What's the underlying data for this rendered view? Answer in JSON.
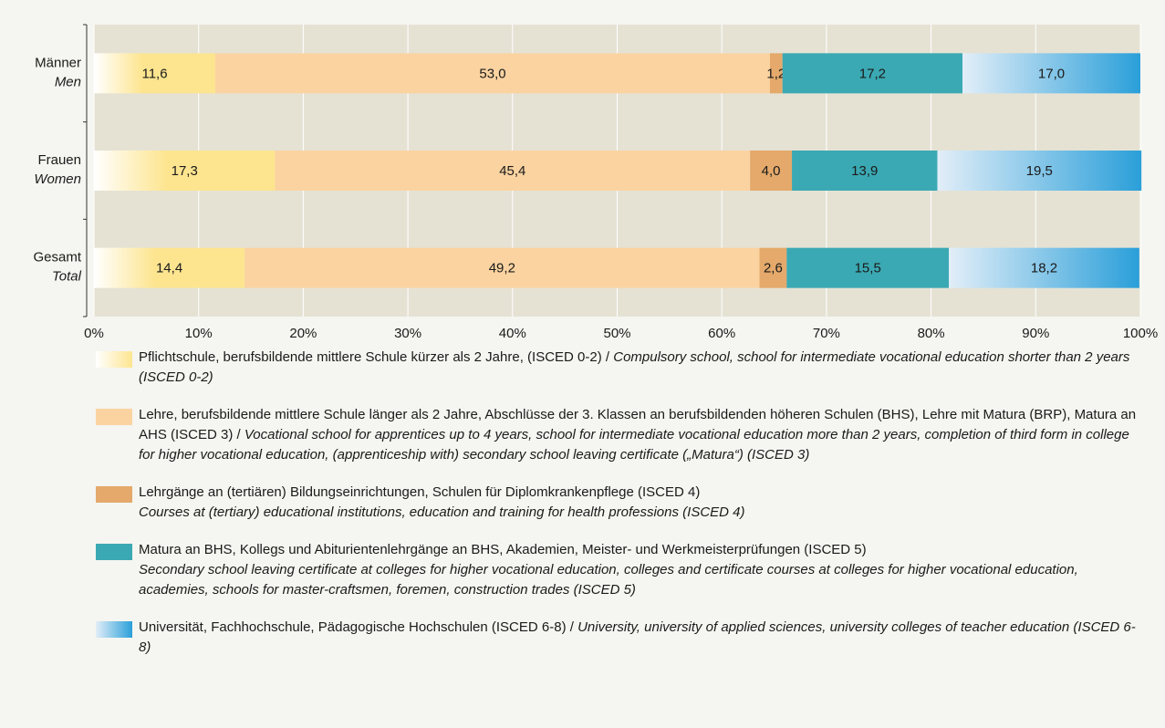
{
  "chart_data": {
    "type": "stacked-bar-horizontal",
    "categories": [
      "Männer",
      "Frauen",
      "Gesamt"
    ],
    "categories_en": [
      "Men",
      "Women",
      "Total"
    ],
    "xlim": [
      0,
      100
    ],
    "xticks": [
      {
        "value": 0,
        "label": "0%"
      },
      {
        "value": 10,
        "label": "10%"
      },
      {
        "value": 20,
        "label": "20%"
      },
      {
        "value": 30,
        "label": "30%"
      },
      {
        "value": 40,
        "label": "40%"
      },
      {
        "value": 50,
        "label": "50%"
      },
      {
        "value": 60,
        "label": "60%"
      },
      {
        "value": 70,
        "label": "70%"
      },
      {
        "value": 80,
        "label": "80%"
      },
      {
        "value": 90,
        "label": "90%"
      },
      {
        "value": 100,
        "label": "100%"
      }
    ],
    "grid": true,
    "series": [
      {
        "name": "Pflichtschule, berufsbildende mittlere Schule kürzer als 2 Jahre, (ISCED 0-2) /",
        "name_en": "Compulsory school, school for intermediate vocational education shorter than 2 years (ISCED 0-2)",
        "color": "#fde590",
        "color_from": "#ffffff",
        "values": [
          11.6,
          17.3,
          14.4
        ],
        "value_labels": [
          "11,6",
          "17,3",
          "14,4"
        ]
      },
      {
        "name": "Lehre, berufsbildende mittlere Schule länger als 2 Jahre, Abschlüsse der 3. Klassen an berufsbildenden höheren Schulen (BHS), Lehre mit Matura (BRP), Matura an AHS (ISCED 3) /",
        "name_en": "Vocational school for apprentices up to 4 years, school for intermediate vocational education more than 2 years, completion of third form in college for higher vocational education, (apprenticeship with) secondary school leaving certificate („Matura“) (ISCED 3)",
        "color": "#fbd3a1",
        "values": [
          53.0,
          45.4,
          49.2
        ],
        "value_labels": [
          "53,0",
          "45,4",
          "49,2"
        ]
      },
      {
        "name": "Lehrgänge an (tertiären) Bildungseinrichtungen, Schulen für Diplomkrankenpflege (ISCED 4)",
        "name_en": "Courses at (tertiary) educational institutions, education and training for health professions (ISCED 4)",
        "color": "#e4a96b",
        "values": [
          1.2,
          4.0,
          2.6
        ],
        "value_labels": [
          "1,2",
          "4,0",
          "2,6"
        ]
      },
      {
        "name": "Matura an BHS, Kollegs und Abiturientenlehrgänge an BHS, Akademien, Meister- und Werkmeisterprüfungen (ISCED 5)",
        "name_en": "Secondary school leaving certificate at colleges for higher vocational education, colleges and certificate courses at colleges for higher vocational education, academies, schools for master-craftsmen, foremen, construction trades (ISCED 5)",
        "color": "#3ba9b3",
        "values": [
          17.2,
          13.9,
          15.5
        ],
        "value_labels": [
          "17,2",
          "13,9",
          "15,5"
        ]
      },
      {
        "name": "Universität, Fachhochschule, Pädagogische Hochschulen (ISCED 6-8) /",
        "name_en": "University, university of applied sciences, university colleges of teacher education (ISCED 6-8)",
        "color": "#2a9fd9",
        "color_from": "#e2eef8",
        "values": [
          17.0,
          19.5,
          18.2
        ],
        "value_labels": [
          "17,0",
          "19,5",
          "18,2"
        ]
      }
    ]
  }
}
